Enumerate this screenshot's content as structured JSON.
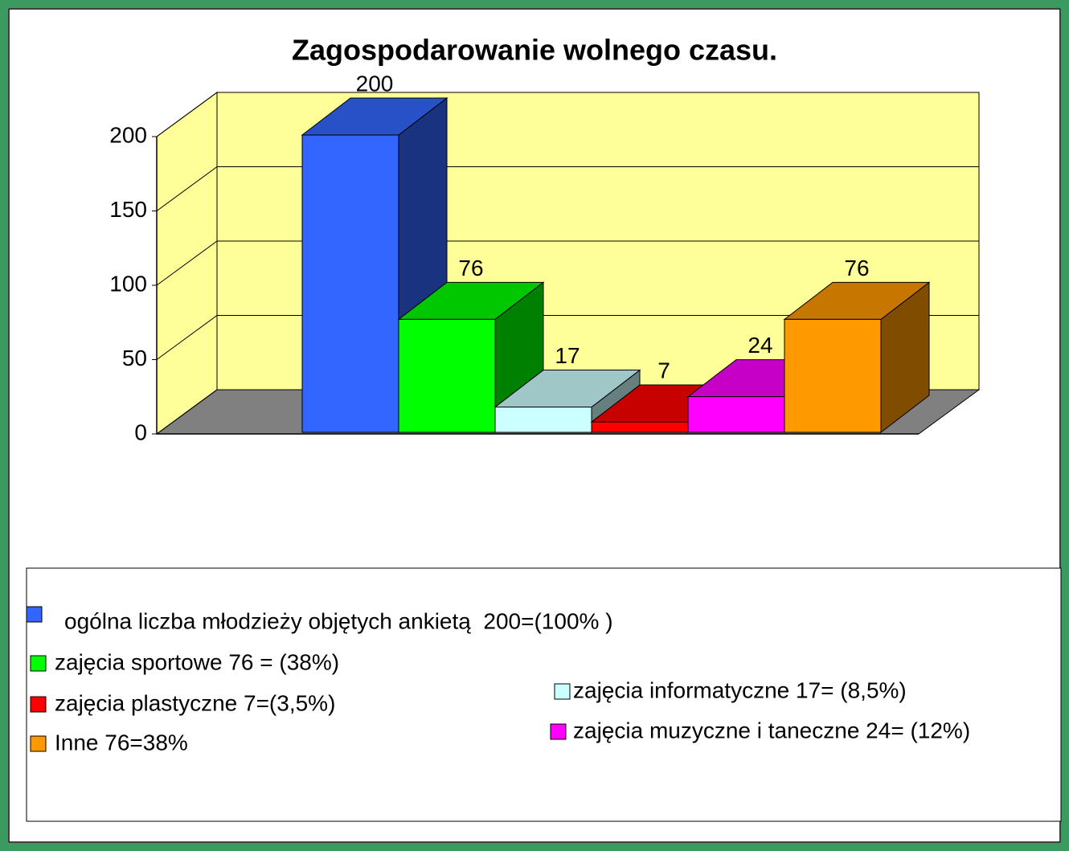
{
  "chart_data": {
    "type": "bar",
    "title": "Zagospodarowanie wolnego czasu.",
    "categories": [
      null
    ],
    "series": [
      {
        "name": "ogólna liczba młodzieży objętych ankietą  200=(100% )",
        "color": "#3366ff",
        "values": [
          200
        ]
      },
      {
        "name": "zajęcia sportowe 76 = (38%)",
        "color": "#00ff00",
        "values": [
          76
        ]
      },
      {
        "name": "zajęcia informatyczne 17= (8,5%)",
        "color": "#ccffff",
        "values": [
          17
        ]
      },
      {
        "name": "zajęcia plastyczne 7=(3,5%)",
        "color": "#ff0000",
        "values": [
          7
        ]
      },
      {
        "name": "zajęcia muzyczne i taneczne 24= (12%)",
        "color": "#ff00ff",
        "values": [
          24
        ]
      },
      {
        "name": "Inne 76=38%",
        "color": "#ff9900",
        "values": [
          76
        ]
      }
    ],
    "ylim": [
      0,
      200
    ],
    "yticks": [
      0,
      50,
      100,
      150,
      200
    ],
    "grid": true
  }
}
